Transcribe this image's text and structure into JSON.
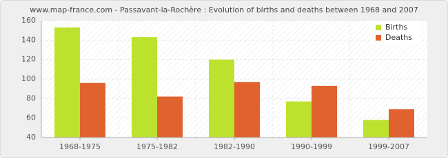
{
  "chart_data": {
    "type": "bar",
    "title": "www.map-france.com - Passavant-la-Rochère : Evolution of births and deaths between 1968 and 2007",
    "categories": [
      "1968-1975",
      "1975-1982",
      "1982-1990",
      "1990-1999",
      "1999-2007"
    ],
    "series": [
      {
        "name": "Births",
        "color": "#bde22e",
        "values": [
          153,
          143,
          120,
          77,
          58
        ]
      },
      {
        "name": "Deaths",
        "color": "#e0622f",
        "values": [
          96,
          82,
          97,
          93,
          69
        ]
      }
    ],
    "ylim": [
      40,
      160
    ],
    "yticks": [
      40,
      60,
      80,
      100,
      120,
      140,
      160
    ],
    "grid": true,
    "legend": "top-right"
  }
}
